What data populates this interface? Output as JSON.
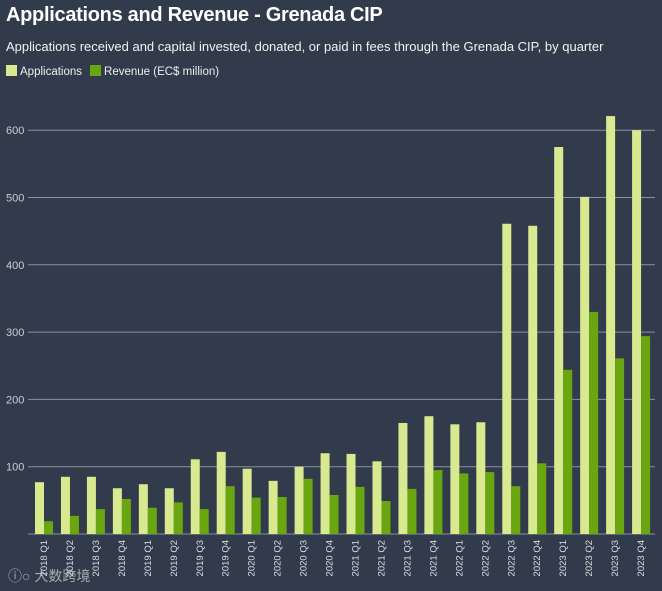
{
  "chart_data": {
    "type": "bar",
    "title": "Applications and Revenue - Grenada CIP",
    "subtitle": "Applications received and capital invested, donated, or paid in fees through the Grenada CIP, by quarter",
    "xlabel": "",
    "ylabel": "",
    "ylim": [
      0,
      650
    ],
    "yticks": [
      100,
      200,
      300,
      400,
      500,
      600
    ],
    "grid": true,
    "legend_position": "top-left",
    "categories": [
      "2018 Q1",
      "2018 Q2",
      "2018 Q3",
      "2018 Q4",
      "2019 Q1",
      "2019 Q2",
      "2019 Q3",
      "2019 Q4",
      "2020 Q1",
      "2020 Q2",
      "2020 Q3",
      "2020 Q4",
      "2021 Q1",
      "2021 Q2",
      "2021 Q3",
      "2021 Q4",
      "2022 Q1",
      "2022 Q2",
      "2022 Q3",
      "2022 Q4",
      "2023 Q1",
      "2023 Q2",
      "2023 Q3",
      "2023 Q4"
    ],
    "series": [
      {
        "name": "Applications",
        "color": "#d9e98f",
        "values": [
          77,
          85,
          85,
          68,
          74,
          68,
          111,
          122,
          97,
          79,
          100,
          120,
          119,
          108,
          165,
          175,
          163,
          166,
          461,
          458,
          575,
          501,
          621,
          600
        ]
      },
      {
        "name": "Revenue (EC$ million)",
        "color": "#6aa60f",
        "values": [
          19,
          27,
          37,
          52,
          39,
          47,
          37,
          71,
          54,
          55,
          82,
          58,
          70,
          49,
          67,
          95,
          90,
          92,
          71,
          105,
          244,
          330,
          261,
          294
        ]
      }
    ]
  },
  "watermark": "大数跨境"
}
